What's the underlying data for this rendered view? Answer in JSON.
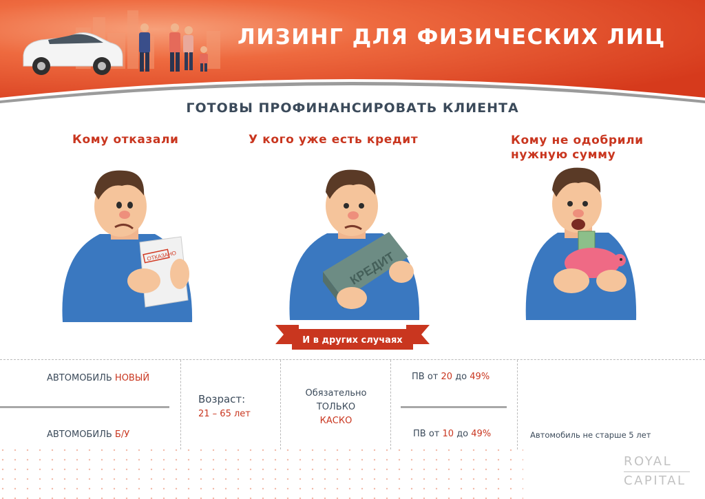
{
  "header": {
    "title": "ЛИЗИНГ ДЛЯ ФИЗИЧЕСКИХ ЛИЦ",
    "accent_color": "#d9401f",
    "band_color": "#e8572f"
  },
  "subtitle": "ГОТОВЫ ПРОФИНАНСИРОВАТЬ КЛИЕНТА",
  "columns": [
    {
      "title": "Кому отказали",
      "paper_stamp": "ОТКАЗАНО"
    },
    {
      "title": "У кого уже есть кредит",
      "brick_text": "КРЕДИТ"
    },
    {
      "title_line1": "Кому не одобрили",
      "title_line2": "нужную сумму"
    }
  ],
  "ribbon": {
    "label": "И в других случаях",
    "color": "#c9361f"
  },
  "conditions": {
    "car_new_prefix": "АВТОМОБИЛЬ",
    "car_new_hl": "НОВЫЙ",
    "car_used_prefix": "АВТОМОБИЛЬ",
    "car_used_hl": "Б/У",
    "age_label": "Возраст:",
    "age_value": "21 – 65 лет",
    "insurance_l1": "Обязательно",
    "insurance_l2": "ТОЛЬКО",
    "insurance_l3": "КАСКО",
    "pv_new_pre": "ПВ от",
    "pv_new_min": "20",
    "pv_new_mid": "до",
    "pv_new_max": "49%",
    "pv_used_pre": "ПВ от",
    "pv_used_min": "10",
    "pv_used_mid": "до",
    "pv_used_max": "49%",
    "car_age": "Автомобиль не старше 5 лет"
  },
  "brand": {
    "line1": "ROYAL",
    "line2": "CAPITAL"
  }
}
